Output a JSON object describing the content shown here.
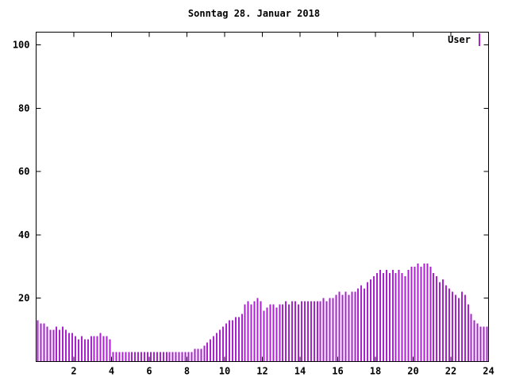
{
  "title": "Sonntag 28. Januar 2018",
  "legend": {
    "label": "User",
    "color": "#aa22cc"
  },
  "chart_data": {
    "type": "bar",
    "title": "Sonntag 28. Januar 2018",
    "xlabel": "",
    "ylabel": "",
    "xlim": [
      0,
      24
    ],
    "ylim": [
      0,
      104
    ],
    "xticks": [
      2,
      4,
      6,
      8,
      10,
      12,
      14,
      16,
      18,
      20,
      22,
      24
    ],
    "yticks": [
      20,
      40,
      60,
      80,
      100
    ],
    "grid": false,
    "legend_position": "top-right",
    "points_per_hour": 6,
    "series": [
      {
        "name": "User",
        "color": "#aa22cc",
        "values": [
          13,
          12,
          12,
          11,
          10,
          10,
          11,
          10,
          11,
          10,
          9,
          9,
          8,
          7,
          8,
          7,
          7,
          8,
          8,
          8,
          9,
          8,
          8,
          7,
          3,
          3,
          3,
          3,
          3,
          3,
          3,
          3,
          3,
          3,
          3,
          3,
          3,
          3,
          3,
          3,
          3,
          3,
          3,
          3,
          3,
          3,
          3,
          3,
          3,
          3,
          4,
          4,
          4,
          5,
          6,
          7,
          8,
          9,
          10,
          11,
          12,
          13,
          13,
          14,
          14,
          15,
          18,
          19,
          18,
          19,
          20,
          19,
          16,
          17,
          18,
          18,
          17,
          18,
          18,
          19,
          18,
          19,
          19,
          18,
          19,
          19,
          19,
          19,
          19,
          19,
          19,
          20,
          19,
          20,
          20,
          21,
          22,
          21,
          22,
          21,
          22,
          22,
          23,
          24,
          23,
          25,
          26,
          27,
          28,
          29,
          28,
          29,
          28,
          29,
          28,
          29,
          28,
          27,
          29,
          30,
          30,
          31,
          30,
          31,
          31,
          30,
          28,
          27,
          25,
          26,
          24,
          23,
          22,
          21,
          20,
          22,
          21,
          18,
          15,
          13,
          12,
          11,
          11,
          11
        ]
      }
    ]
  }
}
